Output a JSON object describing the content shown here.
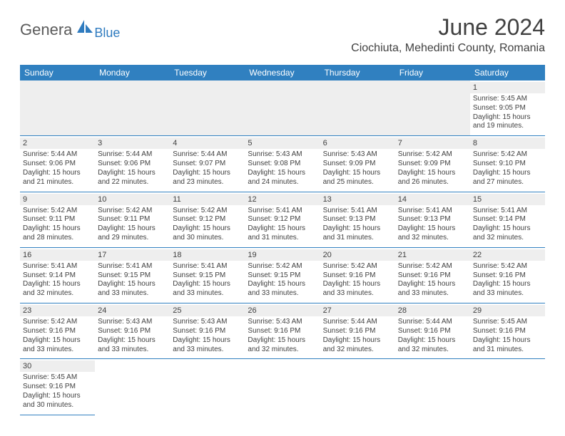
{
  "logo": {
    "main": "Genera",
    "sub": "Blue"
  },
  "title": {
    "month": "June 2024",
    "location": "Ciochiuta, Mehedinti County, Romania"
  },
  "colors": {
    "header_bg": "#3080c0",
    "header_text": "#ffffff",
    "daynum_bg": "#eeeeee",
    "text": "#414141",
    "border": "#3080c0"
  },
  "days_of_week": [
    "Sunday",
    "Monday",
    "Tuesday",
    "Wednesday",
    "Thursday",
    "Friday",
    "Saturday"
  ],
  "weeks": [
    [
      null,
      null,
      null,
      null,
      null,
      null,
      {
        "n": "1",
        "sr": "5:45 AM",
        "ss": "9:05 PM",
        "dl": "15 hours and 19 minutes."
      }
    ],
    [
      {
        "n": "2",
        "sr": "5:44 AM",
        "ss": "9:06 PM",
        "dl": "15 hours and 21 minutes."
      },
      {
        "n": "3",
        "sr": "5:44 AM",
        "ss": "9:06 PM",
        "dl": "15 hours and 22 minutes."
      },
      {
        "n": "4",
        "sr": "5:44 AM",
        "ss": "9:07 PM",
        "dl": "15 hours and 23 minutes."
      },
      {
        "n": "5",
        "sr": "5:43 AM",
        "ss": "9:08 PM",
        "dl": "15 hours and 24 minutes."
      },
      {
        "n": "6",
        "sr": "5:43 AM",
        "ss": "9:09 PM",
        "dl": "15 hours and 25 minutes."
      },
      {
        "n": "7",
        "sr": "5:42 AM",
        "ss": "9:09 PM",
        "dl": "15 hours and 26 minutes."
      },
      {
        "n": "8",
        "sr": "5:42 AM",
        "ss": "9:10 PM",
        "dl": "15 hours and 27 minutes."
      }
    ],
    [
      {
        "n": "9",
        "sr": "5:42 AM",
        "ss": "9:11 PM",
        "dl": "15 hours and 28 minutes."
      },
      {
        "n": "10",
        "sr": "5:42 AM",
        "ss": "9:11 PM",
        "dl": "15 hours and 29 minutes."
      },
      {
        "n": "11",
        "sr": "5:42 AM",
        "ss": "9:12 PM",
        "dl": "15 hours and 30 minutes."
      },
      {
        "n": "12",
        "sr": "5:41 AM",
        "ss": "9:12 PM",
        "dl": "15 hours and 31 minutes."
      },
      {
        "n": "13",
        "sr": "5:41 AM",
        "ss": "9:13 PM",
        "dl": "15 hours and 31 minutes."
      },
      {
        "n": "14",
        "sr": "5:41 AM",
        "ss": "9:13 PM",
        "dl": "15 hours and 32 minutes."
      },
      {
        "n": "15",
        "sr": "5:41 AM",
        "ss": "9:14 PM",
        "dl": "15 hours and 32 minutes."
      }
    ],
    [
      {
        "n": "16",
        "sr": "5:41 AM",
        "ss": "9:14 PM",
        "dl": "15 hours and 32 minutes."
      },
      {
        "n": "17",
        "sr": "5:41 AM",
        "ss": "9:15 PM",
        "dl": "15 hours and 33 minutes."
      },
      {
        "n": "18",
        "sr": "5:41 AM",
        "ss": "9:15 PM",
        "dl": "15 hours and 33 minutes."
      },
      {
        "n": "19",
        "sr": "5:42 AM",
        "ss": "9:15 PM",
        "dl": "15 hours and 33 minutes."
      },
      {
        "n": "20",
        "sr": "5:42 AM",
        "ss": "9:16 PM",
        "dl": "15 hours and 33 minutes."
      },
      {
        "n": "21",
        "sr": "5:42 AM",
        "ss": "9:16 PM",
        "dl": "15 hours and 33 minutes."
      },
      {
        "n": "22",
        "sr": "5:42 AM",
        "ss": "9:16 PM",
        "dl": "15 hours and 33 minutes."
      }
    ],
    [
      {
        "n": "23",
        "sr": "5:42 AM",
        "ss": "9:16 PM",
        "dl": "15 hours and 33 minutes."
      },
      {
        "n": "24",
        "sr": "5:43 AM",
        "ss": "9:16 PM",
        "dl": "15 hours and 33 minutes."
      },
      {
        "n": "25",
        "sr": "5:43 AM",
        "ss": "9:16 PM",
        "dl": "15 hours and 33 minutes."
      },
      {
        "n": "26",
        "sr": "5:43 AM",
        "ss": "9:16 PM",
        "dl": "15 hours and 32 minutes."
      },
      {
        "n": "27",
        "sr": "5:44 AM",
        "ss": "9:16 PM",
        "dl": "15 hours and 32 minutes."
      },
      {
        "n": "28",
        "sr": "5:44 AM",
        "ss": "9:16 PM",
        "dl": "15 hours and 32 minutes."
      },
      {
        "n": "29",
        "sr": "5:45 AM",
        "ss": "9:16 PM",
        "dl": "15 hours and 31 minutes."
      }
    ],
    [
      {
        "n": "30",
        "sr": "5:45 AM",
        "ss": "9:16 PM",
        "dl": "15 hours and 30 minutes."
      },
      null,
      null,
      null,
      null,
      null,
      null
    ]
  ],
  "labels": {
    "sunrise": "Sunrise: ",
    "sunset": "Sunset: ",
    "daylight": "Daylight: "
  }
}
